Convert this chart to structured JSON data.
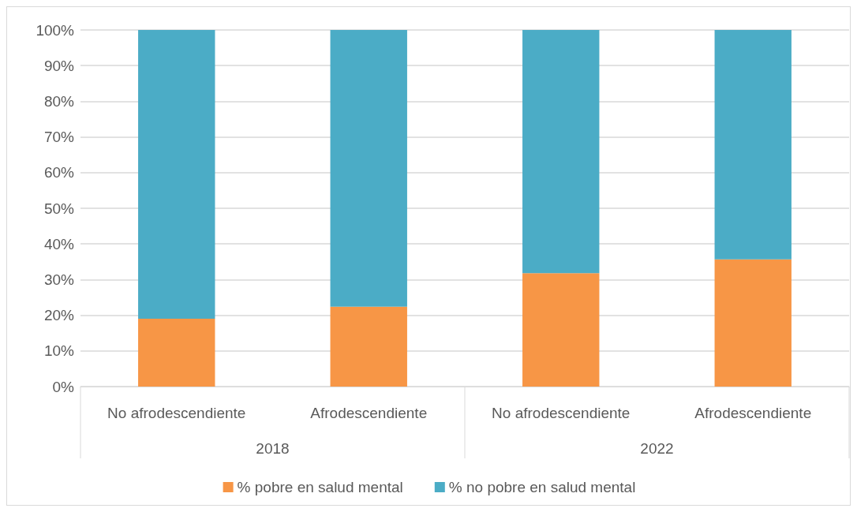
{
  "chart_data": {
    "type": "bar",
    "stacked": true,
    "categories": [
      "No afrodescendiente",
      "Afrodescendiente",
      "No afrodescendiente",
      "Afrodescendiente"
    ],
    "series": [
      {
        "name": "% pobre en salud mental",
        "color": "#f79646",
        "values": [
          19.0,
          22.4,
          31.8,
          35.7
        ]
      },
      {
        "name": "% no pobre en salud mental",
        "color": "#4bacc6",
        "values": [
          81.0,
          77.6,
          68.2,
          64.3
        ]
      }
    ],
    "ylim": [
      0,
      100
    ],
    "yticks": [
      {
        "value": 0,
        "label": "0%"
      },
      {
        "value": 10,
        "label": "10%"
      },
      {
        "value": 20,
        "label": "20%"
      },
      {
        "value": 30,
        "label": "30%"
      },
      {
        "value": 40,
        "label": "40%"
      },
      {
        "value": 50,
        "label": "50%"
      },
      {
        "value": 60,
        "label": "60%"
      },
      {
        "value": 70,
        "label": "70%"
      },
      {
        "value": 80,
        "label": "80%"
      },
      {
        "value": 90,
        "label": "90%"
      },
      {
        "value": 100,
        "label": "100%"
      }
    ],
    "annotations": [
      "2018",
      "2022"
    ],
    "grid": "y",
    "legend": "bottom"
  }
}
